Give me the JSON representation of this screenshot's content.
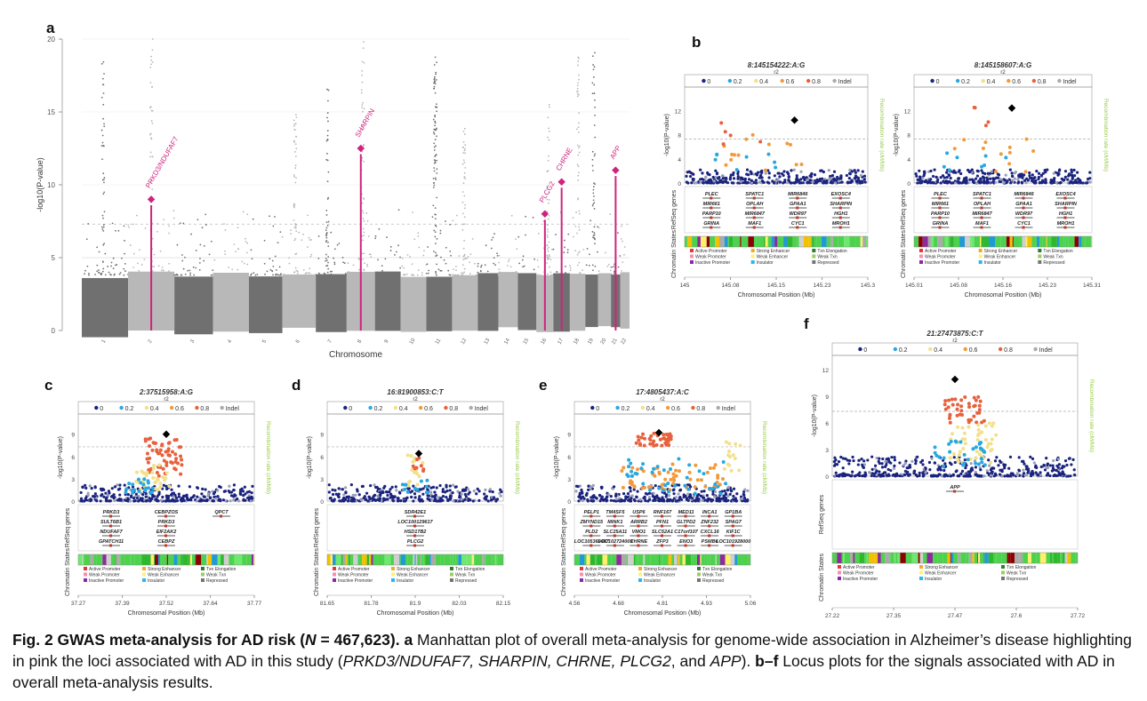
{
  "panel_letters": {
    "a": "a",
    "b": "b",
    "c": "c",
    "d": "d",
    "e": "e",
    "f": "f"
  },
  "manhattan": {
    "ylabel": "-log10(P-value)",
    "xlabel": "Chromosome",
    "yticks": [
      "0",
      "5",
      "10",
      "15",
      "20"
    ],
    "chromosomes": [
      "1",
      "2",
      "3",
      "4",
      "5",
      "6",
      "7",
      "8",
      "9",
      "10",
      "11",
      "12",
      "13",
      "14",
      "15",
      "16",
      "17",
      "18",
      "19",
      "20",
      "21",
      "22"
    ],
    "highlight_color": "#d0237f",
    "dark_color": "#707070",
    "light_color": "#b8b8b8",
    "loci": [
      {
        "label": "PRKD3/NDUFAF7",
        "chrom_index": 1,
        "peak": 9.0
      },
      {
        "label": "SHARPIN",
        "chrom_index": 7,
        "peak": 12.5
      },
      {
        "label": "PLCG2",
        "chrom_index": 15,
        "peak": 8.0
      },
      {
        "label": "CHRNE",
        "chrom_index": 16,
        "peak": 10.2
      },
      {
        "label": "APP",
        "chrom_index": 20,
        "peak": 11.0
      }
    ]
  },
  "locus_common": {
    "ylabel": "-log10(P-value)",
    "y2label": "Recombination rate (cM/Mb)",
    "xlabel": "Chromosomal Position (Mb)",
    "r2_label": "r2",
    "legend_items": [
      "0",
      "0.2",
      "0.4",
      "0.6",
      "0.8",
      "Indel"
    ],
    "legend_colors": [
      "#1a237e",
      "#29a8e0",
      "#f2e08a",
      "#f29a3a",
      "#e8603c",
      "#aaaaaa"
    ],
    "genes_label": "RefSeq genes",
    "chromatin_label": "Chromatin States",
    "states": [
      "Active Promoter",
      "Weak Promoter",
      "Inactive Promoter",
      "Strong Enhancer",
      "Weak Enhancer",
      "Insulator",
      "Txn Elongation",
      "Weak Txn",
      "Repressed"
    ]
  },
  "panels": {
    "b1": {
      "title": "8:145154222:A:G",
      "xticks": [
        "145",
        "145.08",
        "145.15",
        "145.23",
        "145.3"
      ],
      "yticks": [
        "0",
        "4",
        "8",
        "12"
      ],
      "genes": [
        "PLEC",
        "MIR661",
        "PARP10",
        "GRINA",
        "SPATC1",
        "OPLAH",
        "MIR6847",
        "MAF1",
        "MIR6846",
        "GPAA1",
        "WDR97",
        "CYC1",
        "EXOSC4",
        "SHARPIN",
        "HGH1",
        "MROH1"
      ]
    },
    "b2": {
      "title": "8:145158607:A:G",
      "xticks": [
        "145.01",
        "145.08",
        "145.16",
        "145.23",
        "145.31"
      ],
      "yticks": [
        "0",
        "4",
        "8",
        "12"
      ],
      "genes": [
        "PLEC",
        "MIR661",
        "PARP10",
        "GRINA",
        "SPATC1",
        "OPLAH",
        "MIR6847",
        "MAF1",
        "MIR6846",
        "GPAA1",
        "WDR97",
        "CYC1",
        "EXOSC4",
        "SHARPIN",
        "HGH1",
        "MROH1"
      ]
    },
    "c": {
      "title": "2:37515958:A:G",
      "xticks": [
        "37.27",
        "37.39",
        "37.52",
        "37.64",
        "37.77"
      ],
      "yticks": [
        "0",
        "3",
        "6",
        "9"
      ],
      "genes": [
        "PRKD3",
        "SULT6B1",
        "NDUFAF7",
        "GPATCH11",
        "CEBPZOS",
        "PRKD3",
        "EIF2AK2",
        "CEBPZ",
        "QPCT"
      ]
    },
    "d": {
      "title": "16:81900853:C:T",
      "xticks": [
        "81.65",
        "81.78",
        "81.9",
        "82.03",
        "82.15"
      ],
      "yticks": [
        "0",
        "3",
        "6",
        "9"
      ],
      "genes": [
        "SDR42E1",
        "LOC100129617",
        "HSD17B2",
        "PLCG2"
      ]
    },
    "e": {
      "title": "17:4805437:A:C",
      "xticks": [
        "4.56",
        "4.68",
        "4.81",
        "4.93",
        "5.06"
      ],
      "yticks": [
        "0",
        "3",
        "6",
        "9"
      ],
      "genes": [
        "PELP1",
        "ZMYND15",
        "PLD2",
        "LOC105369487",
        "TM4SF5",
        "MINK1",
        "SLC25A11",
        "LOC102724009",
        "USP6",
        "ARRB2",
        "VMO1",
        "CHRNE",
        "RNF167",
        "PFN1",
        "SLC52A1",
        "ZFP3",
        "MED11",
        "GLTPD2",
        "C17orf107",
        "ENO3",
        "INCA1",
        "ZNF232",
        "CXCL16",
        "PSMB6",
        "GP1BA",
        "SPAG7",
        "KIF1C",
        "LOC101928000"
      ]
    },
    "f": {
      "title": "21:27473875:C:T",
      "xticks": [
        "27.22",
        "27.35",
        "27.47",
        "27.6",
        "27.72"
      ],
      "yticks": [
        "0",
        "3",
        "6",
        "9",
        "12"
      ],
      "genes": [
        "APP"
      ]
    }
  },
  "caption": {
    "lead": "Fig. 2 GWAS meta-analysis for AD risk (",
    "n_symbol": "N",
    "n_value": " = 467,623).",
    "a_letter": "a",
    "a_text": " Manhattan plot of overall meta-analysis for genome-wide association in Alzheimer’s disease highlighting in pink the loci associated with AD in this study (",
    "genes_italic": "PRKD3/NDUFAF7, SHARPIN, CHRNE, PLCG2",
    "and": ", and ",
    "app": "APP",
    "close": "). ",
    "bf_letters": "b–f",
    "bf_text": " Locus plots for the signals associated with AD in overall meta-analysis results."
  }
}
